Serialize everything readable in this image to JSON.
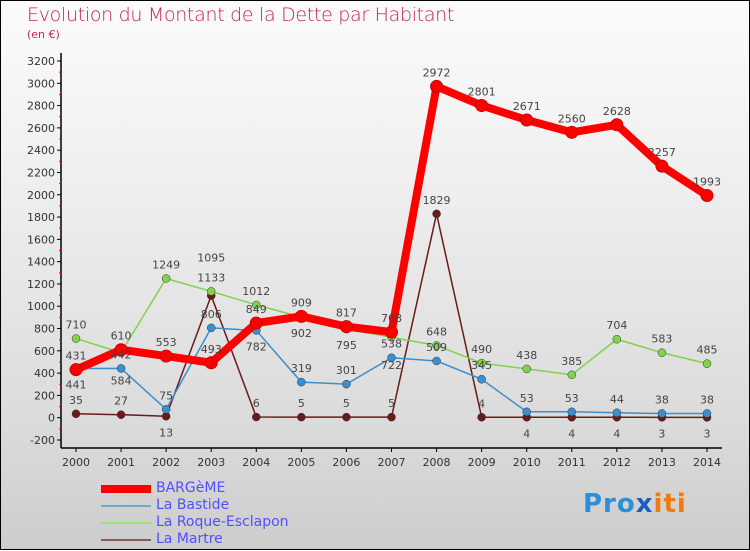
{
  "chart_data": {
    "type": "line",
    "title": "Evolution du Montant de la Dette par Habitant",
    "subtitle": "(en €)",
    "xlabel": "",
    "ylabel": "",
    "ylim": [
      -200,
      3200
    ],
    "y_ticks": [
      -200,
      0,
      200,
      400,
      600,
      800,
      1000,
      1200,
      1400,
      1600,
      1800,
      2000,
      2200,
      2400,
      2600,
      2800,
      3000,
      3200
    ],
    "x": [
      2000,
      2001,
      2002,
      2003,
      2004,
      2005,
      2006,
      2007,
      2008,
      2009,
      2010,
      2011,
      2012,
      2013,
      2014
    ],
    "grid": false,
    "legend_position": "bottom-left",
    "series": [
      {
        "name": "BARGèME",
        "color": "#ff0000",
        "values": [
          431,
          610,
          553,
          493,
          849,
          909,
          817,
          768,
          2972,
          2801,
          2671,
          2560,
          2628,
          2257,
          1993
        ]
      },
      {
        "name": "La Bastide",
        "color": "#3a8fd0",
        "values": [
          441,
          442,
          75,
          806,
          782,
          319,
          301,
          538,
          509,
          345,
          53,
          53,
          44,
          38,
          38
        ]
      },
      {
        "name": "La Roque-Esclapon",
        "color": "#7ed34a",
        "values": [
          710,
          584,
          1249,
          1133,
          1012,
          902,
          795,
          722,
          648,
          490,
          438,
          385,
          704,
          583,
          485
        ]
      },
      {
        "name": "La Martre",
        "color": "#6b1a1a",
        "values": [
          35,
          27,
          13,
          1095,
          6,
          5,
          5,
          5,
          1829,
          4,
          4,
          4,
          4,
          3,
          3
        ]
      }
    ]
  },
  "logo": {
    "text": "Proxiti",
    "parts": [
      "Pro",
      "x",
      "iti"
    ]
  }
}
